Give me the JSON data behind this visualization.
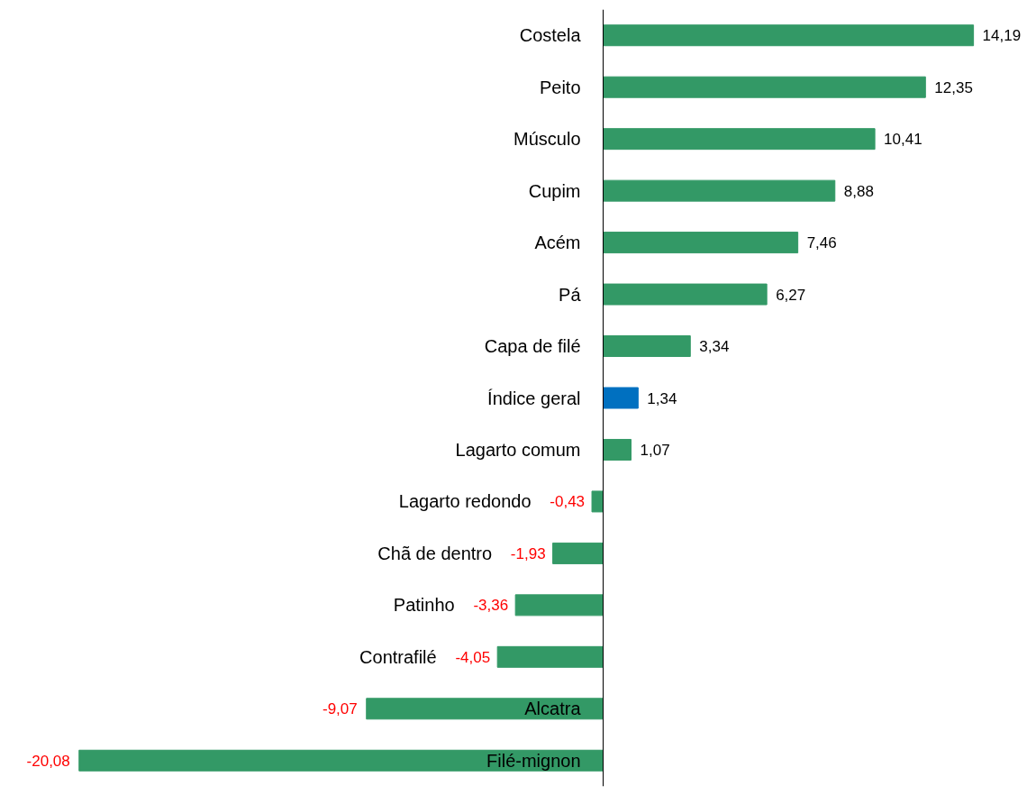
{
  "chart_data": {
    "type": "bar",
    "orientation": "horizontal",
    "grid": false,
    "data_labels": true,
    "value_labels": [
      "14,19",
      "12,35",
      "10,41",
      "8,88",
      "7,46",
      "6,27",
      "3,34",
      "1,34",
      "1,07",
      "-0,43",
      "-1,93",
      "-3,36",
      "-4,05",
      "-9,07",
      "-20,08"
    ],
    "categories": [
      "Costela",
      "Peito",
      "Músculo",
      "Cupim",
      "Acém",
      "Pá",
      "Capa de filé",
      "Índice geral",
      "Lagarto comum",
      "Lagarto redondo",
      "Chã de dentro",
      "Patinho",
      "Contrafilé",
      "Alcatra",
      "Filé-mignon"
    ],
    "values": [
      14.19,
      12.35,
      10.41,
      8.88,
      7.46,
      6.27,
      3.34,
      1.34,
      1.07,
      -0.43,
      -1.93,
      -3.36,
      -4.05,
      -9.07,
      -20.08
    ],
    "colors": [
      "#339966",
      "#339966",
      "#339966",
      "#339966",
      "#339966",
      "#339966",
      "#339966",
      "#0070c0",
      "#339966",
      "#339966",
      "#339966",
      "#339966",
      "#339966",
      "#339966",
      "#339966"
    ]
  }
}
